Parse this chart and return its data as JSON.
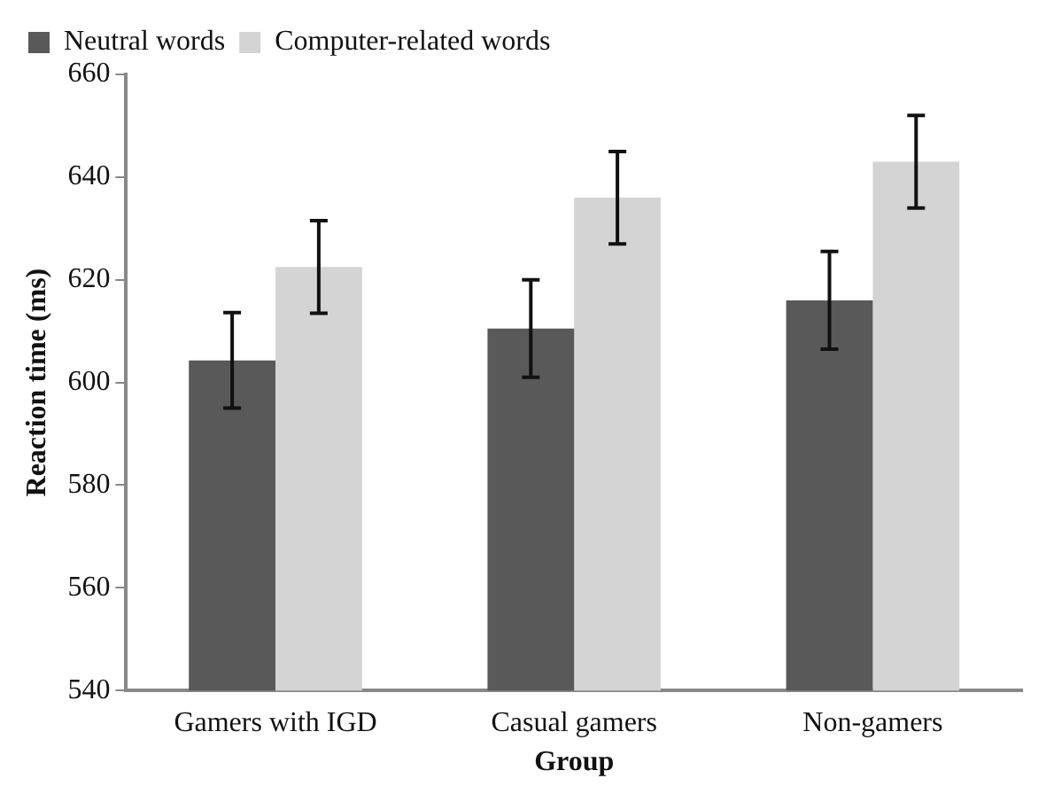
{
  "chart_data": {
    "type": "bar",
    "xlabel": "Group",
    "ylabel": "Reaction time (ms)",
    "categories": [
      "Gamers with IGD",
      "Casual gamers",
      "Non-gamers"
    ],
    "series": [
      {
        "name": "Neutral words",
        "color": "#595959",
        "values": [
          604.3,
          610.5,
          616
        ],
        "errors": [
          9.3,
          9.5,
          9.5
        ]
      },
      {
        "name": "Computer-related words",
        "color": "#d4d4d4",
        "values": [
          622.5,
          636,
          643
        ],
        "errors": [
          9,
          9,
          9
        ]
      }
    ],
    "ylim": [
      540,
      660
    ],
    "yticks": [
      540,
      560,
      580,
      600,
      620,
      640,
      660
    ],
    "grid": false,
    "legend": "top left"
  }
}
